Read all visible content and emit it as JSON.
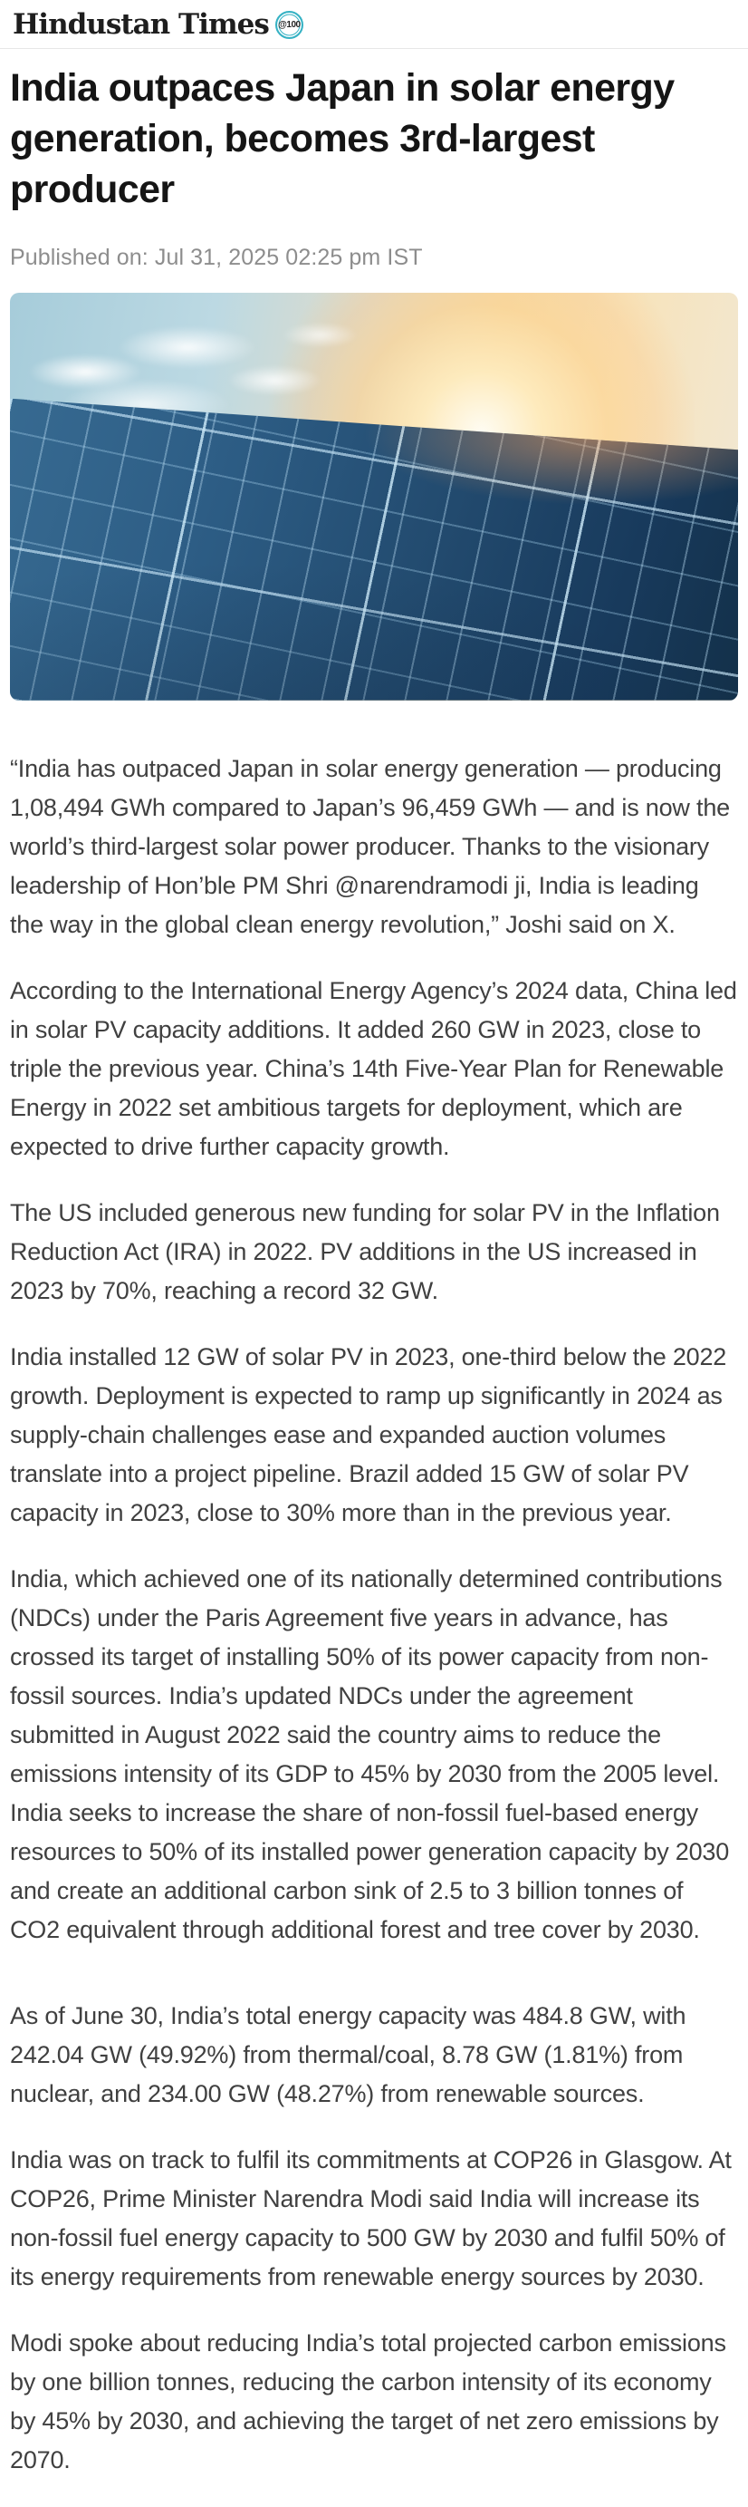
{
  "header": {
    "brand": "Hindustan Times",
    "badge_label": "@100",
    "badge_color": "#35b2c4"
  },
  "article": {
    "headline": "India outpaces Japan in solar energy generation, becomes 3rd-largest producer",
    "published": "Published on: Jul 31, 2025 02:25 pm IST",
    "hero_image": "solar-panel-field-at-sunset",
    "paragraphs": [
      "“India has outpaced Japan in solar energy generation — producing 1,08,494 GWh compared to Japan’s 96,459 GWh — and is now the world’s third-largest solar power producer. Thanks to the visionary leadership of Hon’ble PM Shri @narendramodi ji, India is leading the way in the global clean energy revolution,” Joshi said on X.",
      "According to the International Energy Agency’s 2024 data, China led in solar PV capacity additions. It added 260 GW in 2023, close to triple the previous year. China’s 14th Five-Year Plan for Renewable Energy in 2022 set ambitious targets for deployment, which are expected to drive further capacity growth.",
      "The US included generous new funding for solar PV in the Inflation Reduction Act (IRA) in 2022. PV additions in the US increased in 2023 by 70%, reaching a record 32 GW.",
      "India installed 12 GW of solar PV in 2023, one-third below the 2022 growth. Deployment is expected to ramp up significantly in 2024 as supply-chain challenges ease and expanded auction volumes translate into a project pipeline. Brazil added 15 GW of solar PV capacity in 2023, close to 30% more than in the previous year.",
      "India, which achieved one of its nationally determined contributions (NDCs) under the Paris Agreement five years in advance, has crossed its target of installing 50% of its power capacity from non-fossil sources. India’s updated NDCs under the agreement submitted in August 2022 said the country aims to reduce the emissions intensity of its GDP to 45% by 2030 from the 2005 level. India seeks to increase the share of non-fossil fuel-based energy resources to 50% of its installed power generation capacity by 2030 and create an additional carbon sink of 2.5 to 3 billion tonnes of CO2 equivalent through additional forest and tree cover by 2030.",
      "As of June 30, India’s total energy capacity was 484.8 GW, with 242.04 GW (49.92%) from thermal/coal, 8.78 GW (1.81%) from nuclear, and 234.00 GW (48.27%) from renewable sources.",
      "India was on track to fulfil its commitments at COP26 in Glasgow. At COP26, Prime Minister Narendra Modi said India will increase its non-fossil fuel energy capacity to 500 GW by 2030 and fulfil 50% of its energy requirements from renewable energy sources by 2030.",
      "Modi spoke about reducing India’s total projected carbon emissions by one billion tonnes, reducing the carbon intensity of its economy by 45% by 2030, and achieving the target of net zero emissions by 2070."
    ]
  }
}
